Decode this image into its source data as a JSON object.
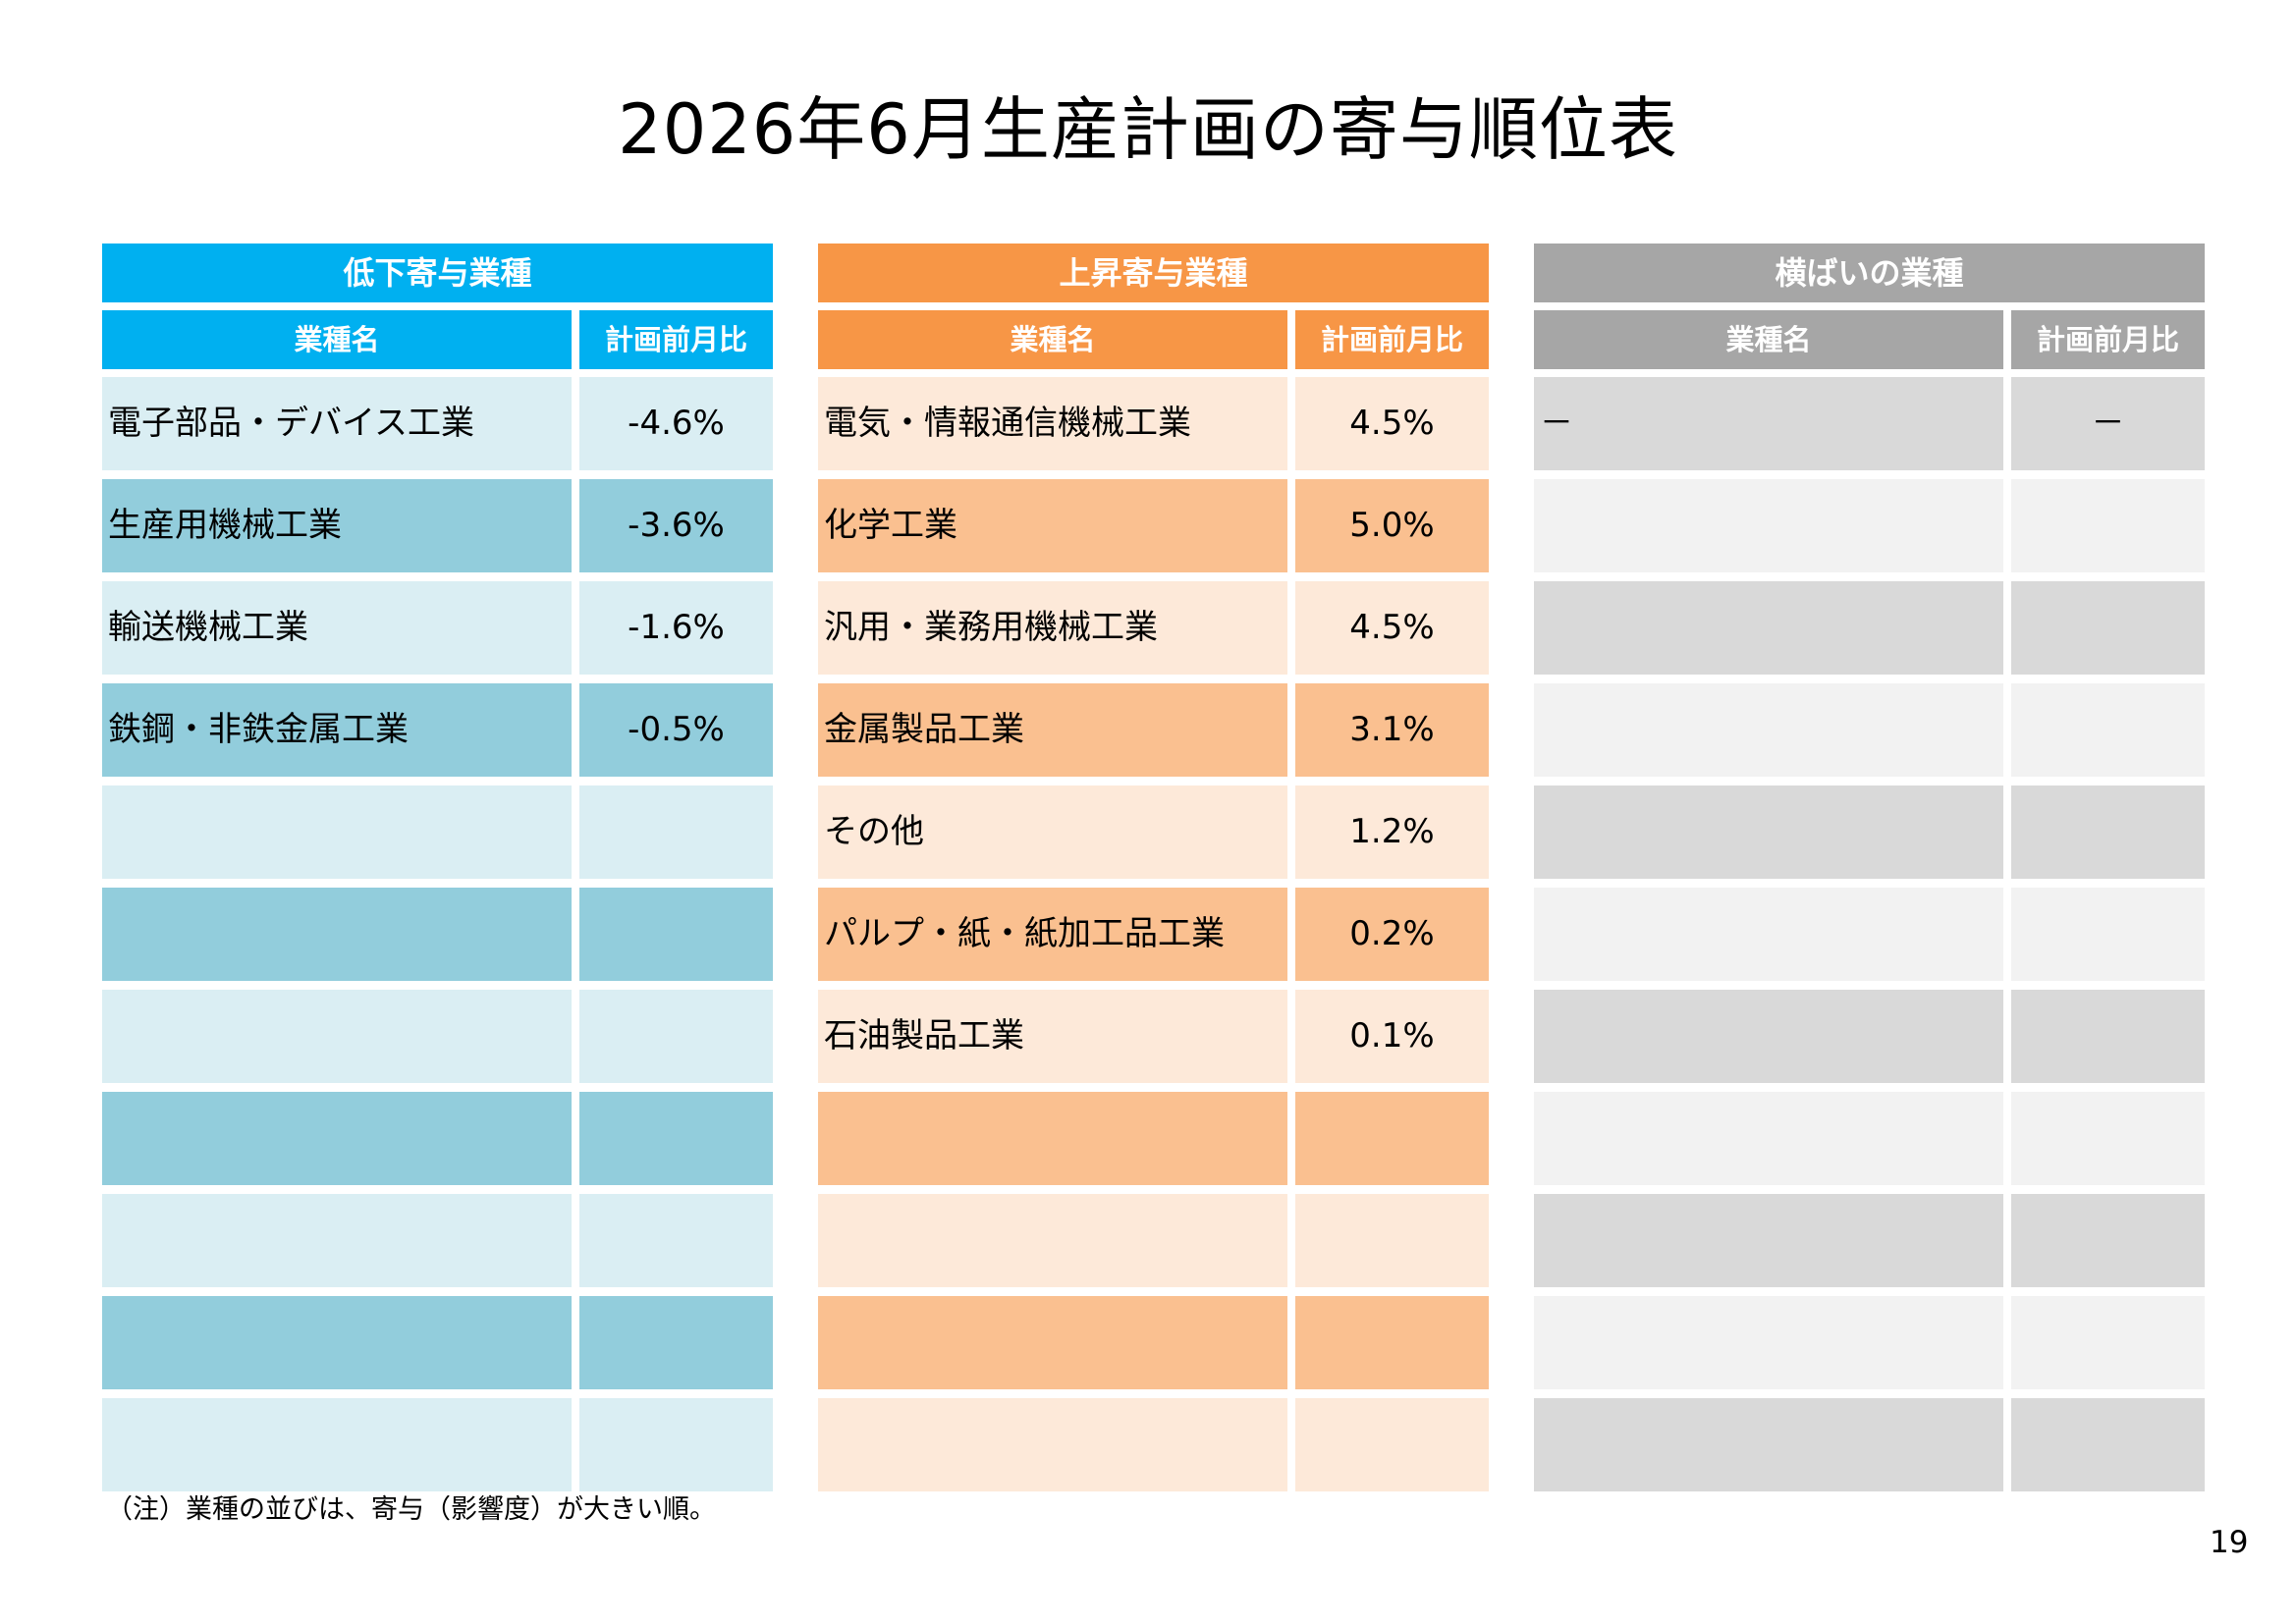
{
  "title": "2026年6月生産計画の寄与順位表",
  "panels": [
    {
      "header": "低下寄与業種",
      "col_name": "業種名",
      "col_value": "計画前月比",
      "rows": [
        {
          "name": "電子部品・デバイス工業",
          "value": "-4.6%"
        },
        {
          "name": "生産用機械工業",
          "value": "-3.6%"
        },
        {
          "name": "輸送機械工業",
          "value": "-1.6%"
        },
        {
          "name": "鉄鋼・非鉄金属工業",
          "value": "-0.5%"
        },
        {
          "name": "",
          "value": ""
        },
        {
          "name": "",
          "value": ""
        },
        {
          "name": "",
          "value": ""
        },
        {
          "name": "",
          "value": ""
        },
        {
          "name": "",
          "value": ""
        },
        {
          "name": "",
          "value": ""
        },
        {
          "name": "",
          "value": ""
        }
      ]
    },
    {
      "header": "上昇寄与業種",
      "col_name": "業種名",
      "col_value": "計画前月比",
      "rows": [
        {
          "name": "電気・情報通信機械工業",
          "value": "4.5%"
        },
        {
          "name": "化学工業",
          "value": "5.0%"
        },
        {
          "name": "汎用・業務用機械工業",
          "value": "4.5%"
        },
        {
          "name": "金属製品工業",
          "value": "3.1%"
        },
        {
          "name": "その他",
          "value": "1.2%"
        },
        {
          "name": "パルプ・紙・紙加工品工業",
          "value": "0.2%"
        },
        {
          "name": "石油製品工業",
          "value": "0.1%"
        },
        {
          "name": "",
          "value": ""
        },
        {
          "name": "",
          "value": ""
        },
        {
          "name": "",
          "value": ""
        },
        {
          "name": "",
          "value": ""
        }
      ]
    },
    {
      "header": "横ばいの業種",
      "col_name": "業種名",
      "col_value": "計画前月比",
      "rows": [
        {
          "name": "－",
          "value": "－"
        },
        {
          "name": "",
          "value": ""
        },
        {
          "name": "",
          "value": ""
        },
        {
          "name": "",
          "value": ""
        },
        {
          "name": "",
          "value": ""
        },
        {
          "name": "",
          "value": ""
        },
        {
          "name": "",
          "value": ""
        },
        {
          "name": "",
          "value": ""
        },
        {
          "name": "",
          "value": ""
        },
        {
          "name": "",
          "value": ""
        },
        {
          "name": "",
          "value": ""
        }
      ]
    }
  ],
  "colors": {
    "decline_header": "#00b0f0",
    "decline_light": "#daeef3",
    "decline_dark": "#92cddc",
    "rise_header": "#f79646",
    "rise_light": "#fde9d9",
    "rise_dark": "#fac090",
    "flat_header": "#a6a6a6",
    "flat_dark": "#d9d9d9",
    "flat_light": "#f2f2f2"
  },
  "note": "（注）業種の並びは、寄与（影響度）が大きい順。",
  "page_number": "19"
}
